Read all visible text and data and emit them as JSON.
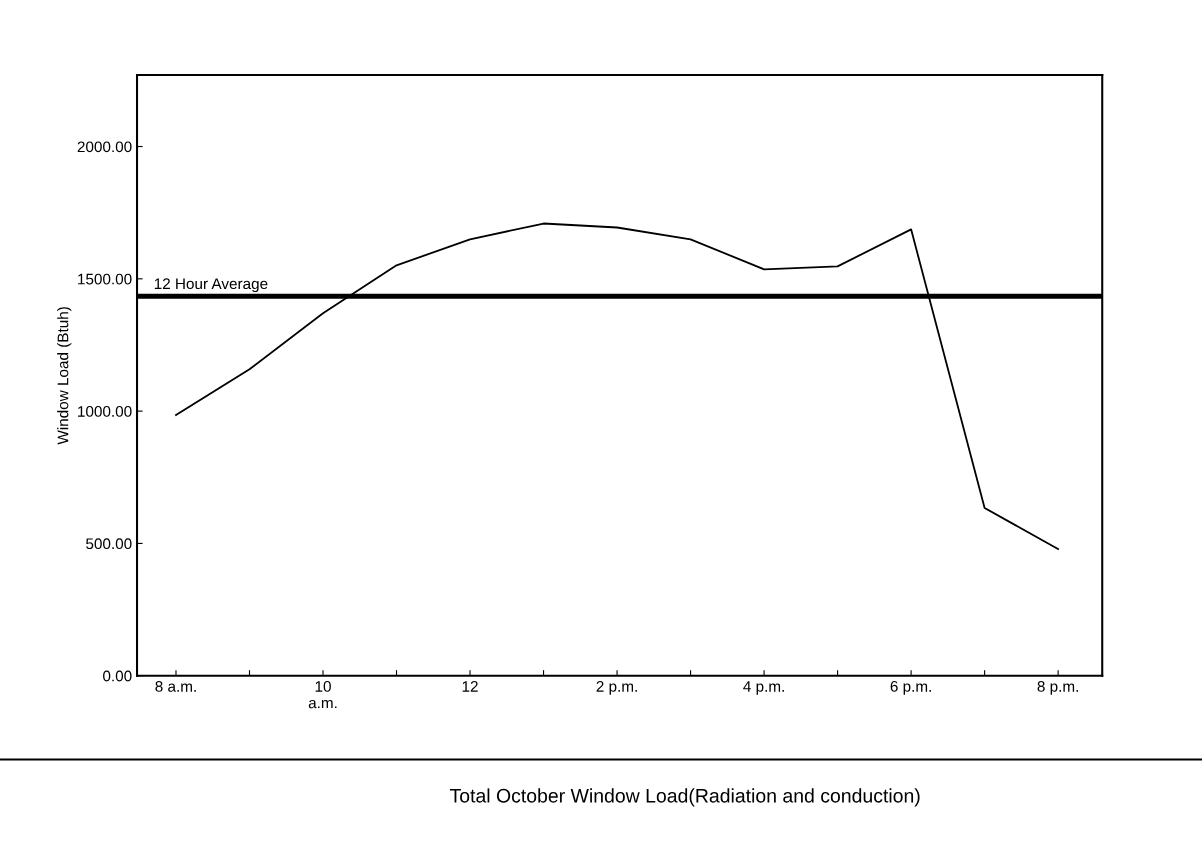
{
  "chart_data": {
    "type": "line",
    "title": "Total October Window Load(Radiation and conduction)",
    "ylabel": "Window Load (Btuh)",
    "categories": [
      "8 a.m.",
      null,
      "10\na.m.",
      null,
      "12",
      null,
      "2 p.m.",
      null,
      "4 p.m.",
      null,
      "6 p.m.",
      null,
      "8 p.m."
    ],
    "series": [
      {
        "color": "#000000",
        "values": [
          985,
          1158,
          1370,
          1551,
          1649,
          1709,
          1694,
          1649,
          1536,
          1547,
          1687,
          634,
          479
        ]
      }
    ],
    "ylim": [
      0,
      2270
    ],
    "yticks": [
      {
        "value": 0,
        "label": "0.00"
      },
      {
        "value": 500,
        "label": "500.00"
      },
      {
        "value": 1000,
        "label": "1000.00"
      },
      {
        "value": 1500,
        "label": "1500.00"
      },
      {
        "value": 2000,
        "label": "2000.00"
      }
    ],
    "ref_lines": [
      {
        "axis": "y",
        "value": 1434,
        "label": "12 Hour Average",
        "color": "#000000"
      }
    ],
    "grid": false,
    "legend": false,
    "marker": "none",
    "line_style": "solid"
  }
}
